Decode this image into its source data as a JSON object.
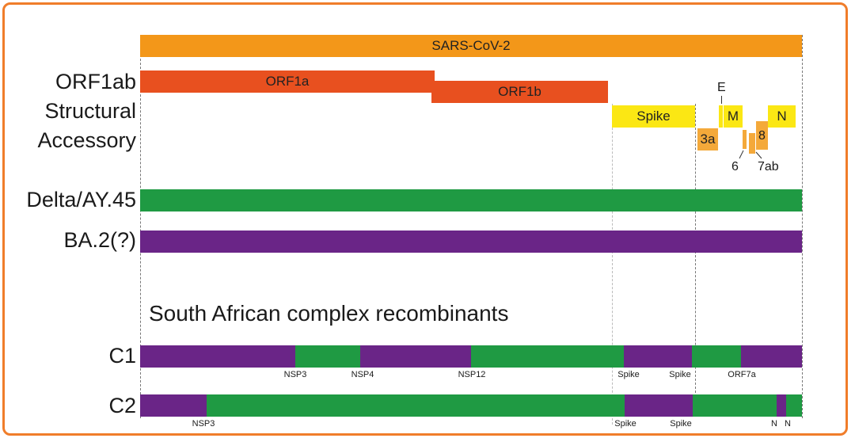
{
  "colors": {
    "frame": "#f07d2a",
    "sars": "#f39719",
    "orf1": "#e8501f",
    "structural": "#fbe714",
    "accessory": "#f4a93a",
    "delta": "#1f9a43",
    "ba2": "#6a2587"
  },
  "genome": {
    "label": "SARS-CoV-2"
  },
  "rows": {
    "orf1ab": "ORF1ab",
    "structural": "Structural",
    "accessory": "Accessory",
    "delta": "Delta/AY.45",
    "ba2": "BA.2(?)",
    "c1": "C1",
    "c2": "C2"
  },
  "genes": {
    "orf1a": "ORF1a",
    "orf1b": "ORF1b",
    "spike": "Spike",
    "e": "E",
    "m": "M",
    "n": "N",
    "orf3a": "3a",
    "orf6": "6",
    "orf7ab": "7ab",
    "orf8": "8"
  },
  "section_title": "South African complex recombinants",
  "c1": {
    "segments": [
      "ba2",
      "delta",
      "ba2",
      "delta",
      "ba2",
      "delta",
      "ba2"
    ],
    "breakpoints": [
      "NSP3",
      "NSP4",
      "NSP12",
      "Spike",
      "Spike",
      "ORF7a"
    ]
  },
  "c2": {
    "segments": [
      "ba2",
      "delta",
      "ba2",
      "delta",
      "ba2",
      "delta"
    ],
    "breakpoints": [
      "NSP3",
      "Spike",
      "Spike",
      "N",
      "N"
    ]
  }
}
